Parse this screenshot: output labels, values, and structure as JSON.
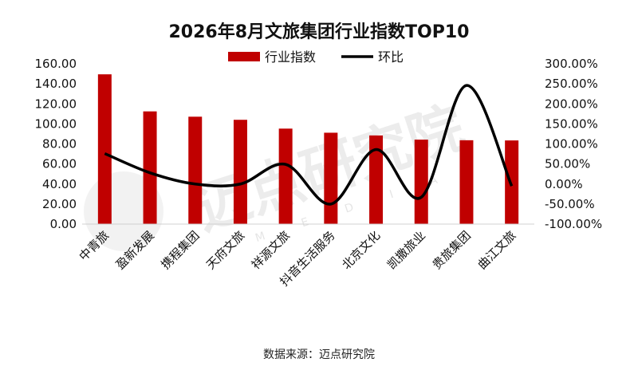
{
  "title": "2026年8月文旅集团行业指数TOP10",
  "source": "数据来源：迈点研究院",
  "watermark": {
    "main": "迈点研究院",
    "sub": "M E D I A"
  },
  "chart_data": {
    "type": "bar",
    "categories": [
      "中青旅",
      "盈新发展",
      "携程集团",
      "天府文旅",
      "祥源文旅",
      "抖音生活服务",
      "北京文化",
      "凯撒旅业",
      "贵旅集团",
      "曲江文旅"
    ],
    "series": [
      {
        "name": "行业指数",
        "type": "bar",
        "axis": "left",
        "color": "#c00000",
        "values": [
          149.5,
          112.5,
          107.2,
          104.1,
          95.3,
          91.2,
          88.5,
          84.3,
          83.7,
          83.5
        ]
      },
      {
        "name": "环比",
        "type": "line",
        "axis": "right",
        "color": "#000000",
        "smooth": true,
        "values": [
          76,
          28,
          0,
          0,
          49,
          -50,
          86,
          -33,
          246,
          -5
        ]
      }
    ],
    "y_left": {
      "min": 0,
      "max": 160,
      "step": 20,
      "tick_labels": [
        "0.00",
        "20.00",
        "40.00",
        "60.00",
        "80.00",
        "100.00",
        "120.00",
        "140.00",
        "160.00"
      ]
    },
    "y_right": {
      "min": -100,
      "max": 300,
      "step": 50,
      "tick_labels": [
        "-100.00%",
        "-50.00%",
        "0.00%",
        "50.00%",
        "100.00%",
        "150.00%",
        "200.00%",
        "250.00%",
        "300.00%"
      ]
    },
    "legend": {
      "position": "top",
      "items": [
        "行业指数",
        "环比"
      ]
    },
    "grid": false
  }
}
